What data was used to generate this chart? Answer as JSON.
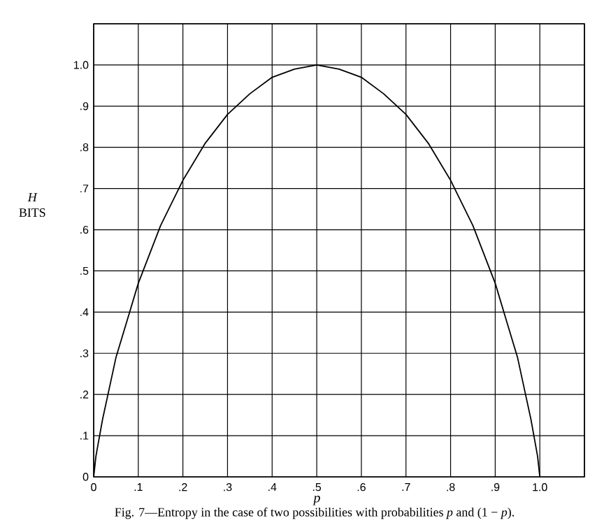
{
  "chart_data": {
    "type": "line",
    "xlabel": "*p*",
    "ylabel": "*H* BITS",
    "annotations": [
      "Fig. 7—Entropy in the case of two possibilities with probabilities *p* and (1 − *p*)."
    ],
    "x": [
      0,
      0.005,
      0.01,
      0.02,
      0.03,
      0.05,
      0.075,
      0.1,
      0.15,
      0.2,
      0.25,
      0.3,
      0.35,
      0.4,
      0.45,
      0.5,
      0.55,
      0.6,
      0.65,
      0.7,
      0.75,
      0.8,
      0.85,
      0.9,
      0.925,
      0.95,
      0.97,
      0.98,
      0.99,
      0.995,
      1
    ],
    "values": [
      0,
      0.05,
      0.08,
      0.14,
      0.19,
      0.29,
      0.38,
      0.47,
      0.61,
      0.72,
      0.81,
      0.88,
      0.93,
      0.97,
      0.99,
      1.0,
      0.99,
      0.97,
      0.93,
      0.88,
      0.81,
      0.72,
      0.61,
      0.47,
      0.38,
      0.29,
      0.19,
      0.14,
      0.08,
      0.05,
      0
    ],
    "color": "#000000",
    "line_style": "solid",
    "marker": "none",
    "grid": true,
    "xlim": [
      0,
      1.1
    ],
    "ylim": [
      0,
      1.1
    ],
    "xticks": [
      0,
      {
        "value": 0.1,
        "label": ".1"
      },
      {
        "value": 0.2,
        "label": ".2"
      },
      {
        "value": 0.3,
        "label": ".3"
      },
      {
        "value": 0.4,
        "label": ".4"
      },
      {
        "value": 0.5,
        "label": ".5"
      },
      {
        "value": 0.6,
        "label": ".6"
      },
      {
        "value": 0.7,
        "label": ".7"
      },
      {
        "value": 0.8,
        "label": ".8"
      },
      {
        "value": 0.9,
        "label": ".9"
      },
      {
        "value": 1,
        "label": "1.0"
      },
      {
        "value": 1.1,
        "label": null
      }
    ],
    "yticks": [
      0,
      {
        "value": 0.1,
        "label": ".1"
      },
      {
        "value": 0.2,
        "label": ".2"
      },
      {
        "value": 0.3,
        "label": ".3"
      },
      {
        "value": 0.4,
        "label": ".4"
      },
      {
        "value": 0.5,
        "label": ".5"
      },
      {
        "value": 0.6,
        "label": ".6"
      },
      {
        "value": 0.7,
        "label": ".7"
      },
      {
        "value": 0.8,
        "label": ".8"
      },
      {
        "value": 0.9,
        "label": ".9"
      },
      {
        "value": 1,
        "label": "1.0"
      },
      {
        "value": 1.1,
        "label": null
      }
    ]
  }
}
